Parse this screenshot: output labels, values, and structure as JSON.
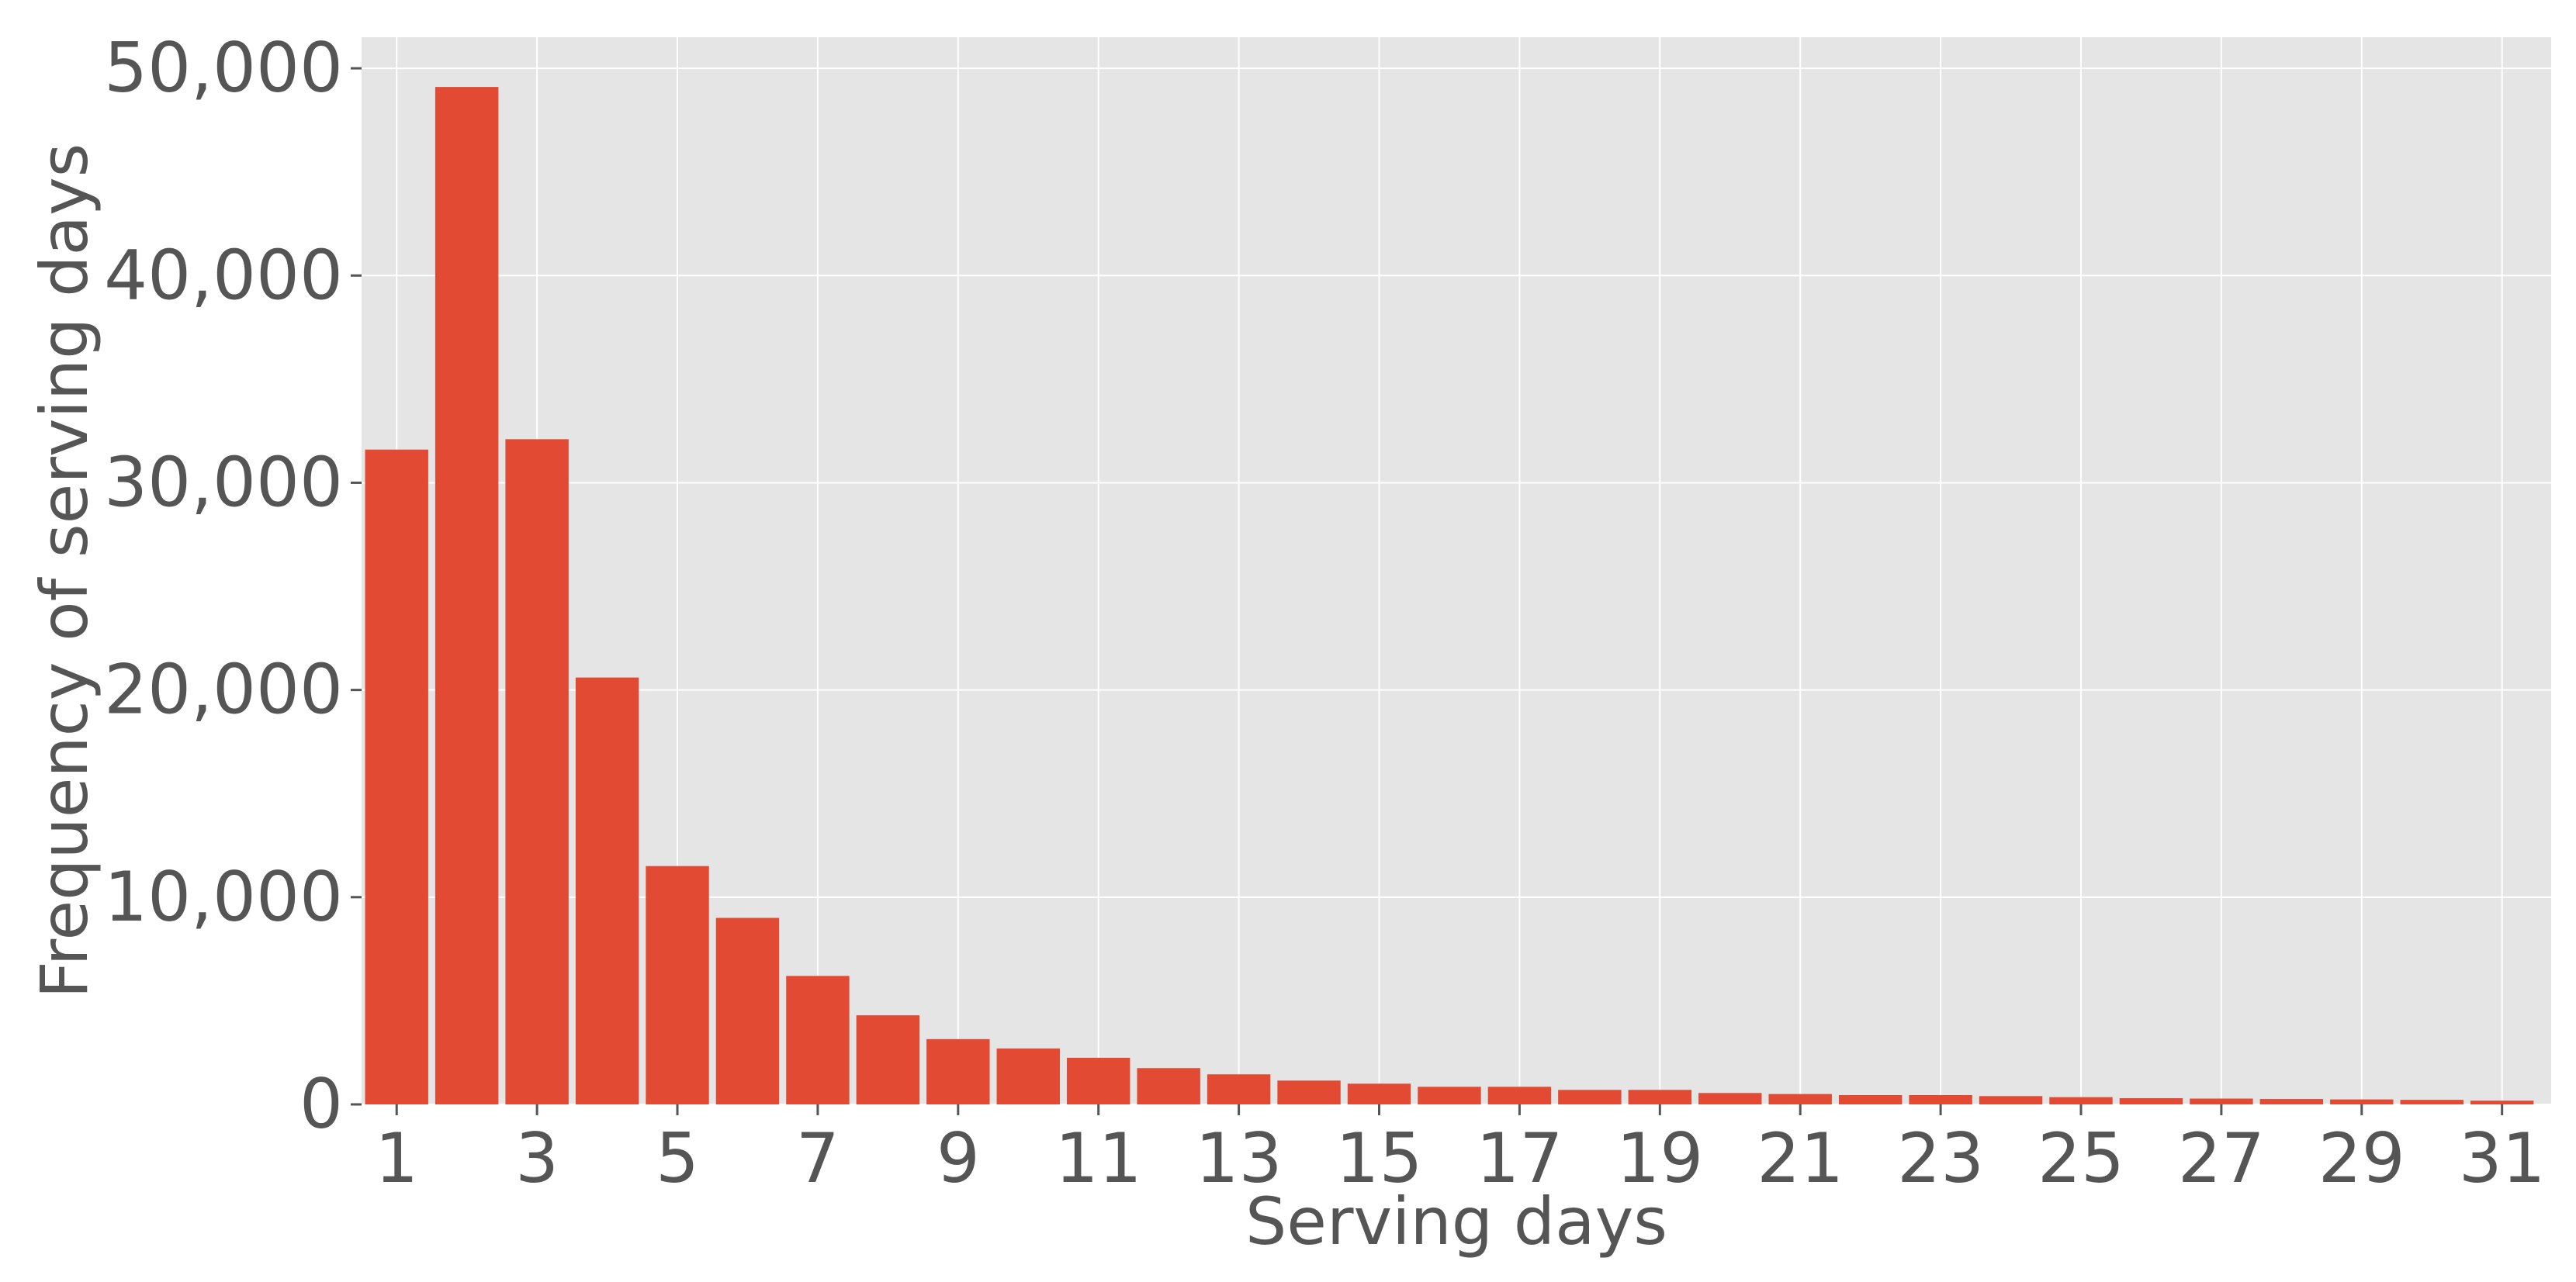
{
  "chart_data": {
    "type": "bar",
    "xlabel": "Serving days",
    "ylabel": "Frequency of serving days",
    "ylim": [
      0,
      51500
    ],
    "xlim": [
      0.5,
      31.7
    ],
    "x_ticks": [
      1,
      3,
      5,
      7,
      9,
      11,
      13,
      15,
      17,
      19,
      21,
      23,
      25,
      27,
      29,
      31
    ],
    "y_ticks": [
      0,
      10000,
      20000,
      30000,
      40000,
      50000
    ],
    "y_tick_labels": [
      "0",
      "10,000",
      "20,000",
      "30,000",
      "40,000",
      "50,000"
    ],
    "grid": true,
    "categories": [
      1,
      2,
      3,
      4,
      5,
      6,
      7,
      8,
      9,
      10,
      11,
      12,
      13,
      14,
      15,
      16,
      17,
      18,
      19,
      20,
      21,
      22,
      23,
      24,
      25,
      26,
      27,
      28,
      29,
      30,
      31
    ],
    "values": [
      31600,
      49100,
      32100,
      20600,
      11500,
      9000,
      6200,
      4300,
      3150,
      2700,
      2250,
      1750,
      1450,
      1150,
      1000,
      850,
      850,
      700,
      700,
      550,
      500,
      450,
      450,
      400,
      350,
      300,
      280,
      260,
      240,
      220,
      180
    ],
    "colors": {
      "bar": "#E24A33",
      "plot_background": "#E5E5E5",
      "grid": "#FFFFFF",
      "text": "#555555"
    }
  }
}
